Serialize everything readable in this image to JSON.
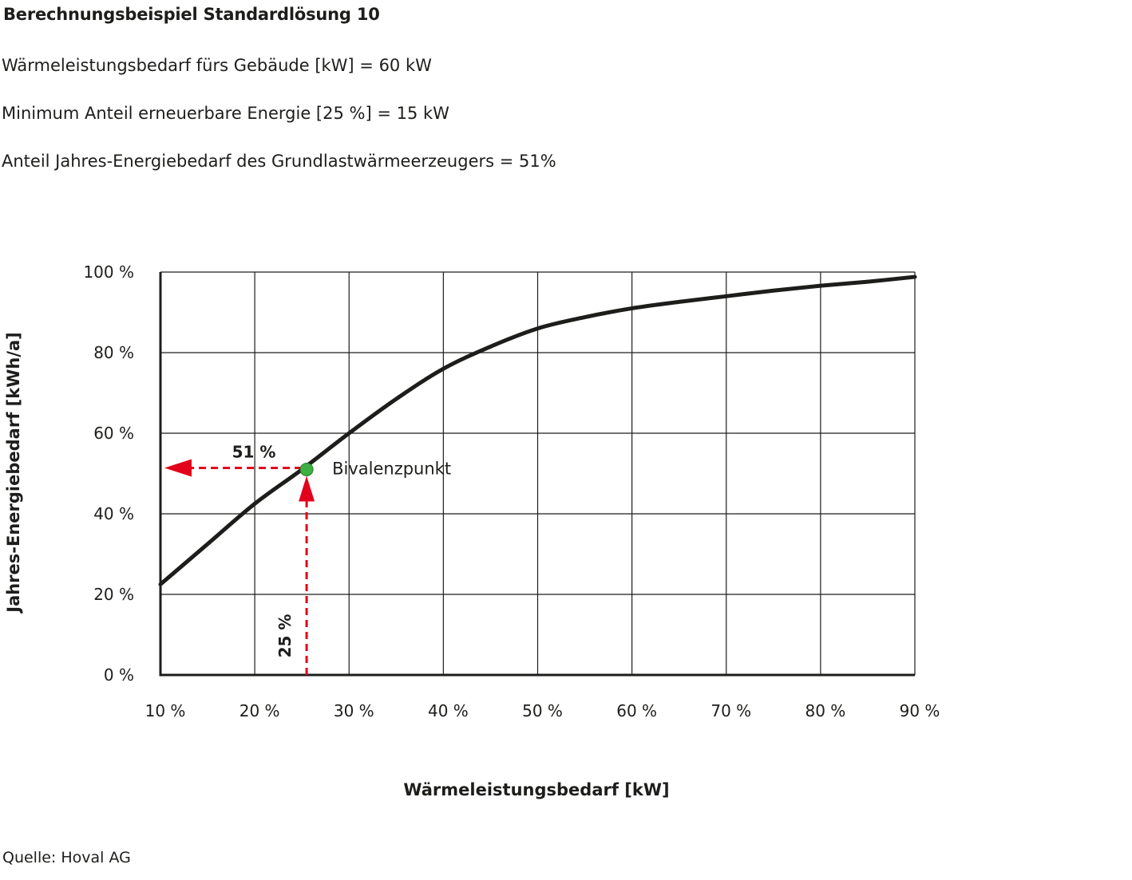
{
  "header": {
    "title": "Berechnungsbeispiel Standardlösung 10",
    "line1": "Wärmeleistungsbedarf fürs Gebäude [kW] = 60 kW",
    "line2": "Minimum Anteil erneuerbare Energie [25 %] = 15 kW",
    "line3": "Anteil Jahres-Energiebedarf des Grundlastwärmeerzeugers = 51%"
  },
  "footer": {
    "source": "Quelle: Hoval AG"
  },
  "colors": {
    "curve": "#1d1d1b",
    "grid": "#1d1d1b",
    "arrow": "#e3001b",
    "point": "#3cb043"
  },
  "chart_data": {
    "type": "line",
    "title": "",
    "xlabel": "Wärmeleistungsbedarf [kW]",
    "ylabel": "Jahres-Energiebedarf [kWh/a]",
    "x_ticks": [
      "10 %",
      "20 %",
      "30 %",
      "40 %",
      "50 %",
      "60 %",
      "70 %",
      "80 %",
      "90 %"
    ],
    "y_ticks": [
      "0 %",
      "20 %",
      "40 %",
      "60 %",
      "80 %",
      "100 %"
    ],
    "xlim": [
      10,
      90
    ],
    "ylim": [
      0,
      100
    ],
    "grid": true,
    "series": [
      {
        "x": [
          10,
          12,
          15,
          20,
          25,
          30,
          35,
          40,
          45,
          50,
          55,
          60,
          65,
          70,
          75,
          80,
          85,
          90
        ],
        "y": [
          22.5,
          26.5,
          32.5,
          42.5,
          51,
          60,
          68.5,
          76,
          81.5,
          86,
          88.8,
          91,
          92.6,
          94,
          95.4,
          96.6,
          97.6,
          98.8
        ]
      }
    ],
    "bivalence_point": {
      "x": 25.5,
      "y": 51,
      "label": "Bivalenzpunkt"
    },
    "annotations": {
      "y_marker": "51 %",
      "x_marker": "25 %"
    }
  }
}
